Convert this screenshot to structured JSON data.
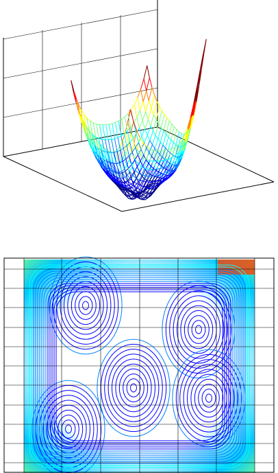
{
  "chart_data": [
    {
      "type": "mesh3d",
      "grid": true,
      "colormap": [
        "#00008f",
        "#0000ff",
        "#0080ff",
        "#00ffff",
        "#80ff80",
        "#ffff00",
        "#ff8000",
        "#ff0000",
        "#800000"
      ]
    },
    {
      "type": "contour",
      "grid": true,
      "colormap": [
        "#00008f",
        "#0000ff",
        "#0080ff",
        "#00ffff",
        "#80ff80",
        "#ffff00",
        "#ff8000",
        "#ff0000",
        "#800000"
      ]
    }
  ]
}
